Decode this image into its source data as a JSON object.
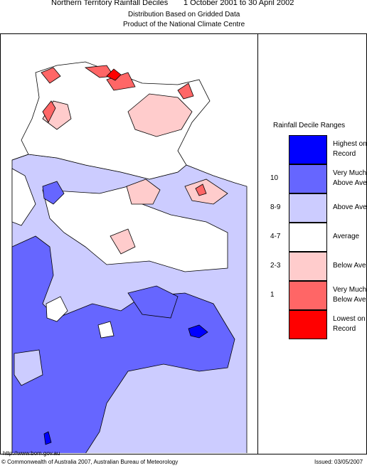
{
  "header": {
    "title": "Northern Territory Rainfall Deciles",
    "period": "1 October 2001 to 30 April 2002",
    "subtitle": "Distribution Based on Gridded Data",
    "product": "Product of the National Climate Centre"
  },
  "legend": {
    "title": "Rainfall Decile Ranges",
    "items": [
      {
        "lines": [
          "Highest on",
          "Record"
        ],
        "color": "#0000ff"
      },
      {
        "range": "10",
        "lines": [
          "Very Much",
          "Above Average"
        ],
        "color": "#6666ff"
      },
      {
        "range": "8-9",
        "lines": [
          "Above Average"
        ],
        "color": "#ccccff"
      },
      {
        "range": "4-7",
        "lines": [
          "Average"
        ],
        "color": "#ffffff"
      },
      {
        "range": "2-3",
        "lines": [
          "Below Average"
        ],
        "color": "#ffcccc"
      },
      {
        "range": "1",
        "lines": [
          "Very Much",
          "Below Average"
        ],
        "color": "#ff6666"
      },
      {
        "lines": [
          "Lowest on",
          "Record"
        ],
        "color": "#ff0000"
      }
    ]
  },
  "footer": {
    "url": "http://www.bom.gov.au",
    "copyright": "© Commonwealth of Australia 2007, Australian Bureau of Meteorology",
    "issued": "Issued: 03/05/2007"
  }
}
